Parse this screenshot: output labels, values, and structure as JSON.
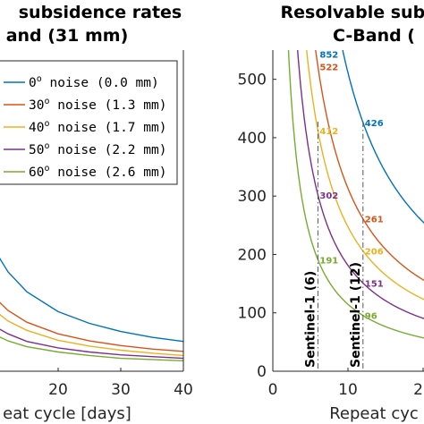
{
  "chart_data": [
    {
      "type": "line",
      "title": "subsidence rates",
      "subtitle": "and (31 mm)",
      "xlabel": "eat cycle [days]",
      "ylabel": "",
      "xlim": [
        10,
        40
      ],
      "xticks": [
        "20",
        "30",
        "40"
      ],
      "legend": {
        "placement": "top-right",
        "entries": [
          "0° noise (0.0 mm)",
          "30° noise (1.3 mm)",
          "40° noise (1.7 mm)",
          "50° noise (2.2 mm)",
          "60° noise (2.6 mm)"
        ],
        "entry_base": [
          "0",
          "30",
          "40",
          "50",
          "60"
        ],
        "entry_sup": [
          "o",
          "o",
          "o",
          "o",
          "o"
        ],
        "entry_rest": [
          " noise (0.0 mm)",
          " noise (1.3 mm)",
          " noise (1.7 mm)",
          " noise (2.2 mm)",
          " noise (2.6 mm)"
        ]
      },
      "series": [
        {
          "color": "#0072BD",
          "x": [
            10,
            12,
            15,
            20,
            25,
            30,
            35,
            40
          ],
          "y": [
            205,
            170,
            136,
            102,
            82,
            68,
            58,
            51
          ]
        },
        {
          "color": "#D95319",
          "x": [
            10,
            12,
            15,
            20,
            25,
            30,
            35,
            40
          ],
          "y": [
            125,
            104,
            84,
            64,
            52,
            44,
            38,
            34
          ]
        },
        {
          "color": "#EDB120",
          "x": [
            10,
            12,
            15,
            20,
            25,
            30,
            35,
            40
          ],
          "y": [
            103,
            86,
            70,
            53,
            43,
            36,
            31,
            27
          ]
        },
        {
          "color": "#7E2F8E",
          "x": [
            10,
            12,
            15,
            20,
            25,
            30,
            35,
            40
          ],
          "y": [
            76,
            64,
            51,
            40,
            33,
            28,
            25,
            22
          ]
        },
        {
          "color": "#77AC30",
          "x": [
            10,
            12,
            15,
            20,
            25,
            30,
            35,
            40
          ],
          "y": [
            62,
            52,
            42,
            33,
            27,
            22,
            20,
            18
          ]
        }
      ]
    },
    {
      "type": "line",
      "title": "Resolvable subs",
      "subtitle": "C-Band (",
      "xlabel": "Repeat cyc",
      "ylabel": "",
      "xlim": [
        0,
        30
      ],
      "ylim": [
        0,
        550
      ],
      "xticks": [
        "0",
        "10",
        "20"
      ],
      "yticks": [
        "0",
        "100",
        "200",
        "300",
        "400",
        "500"
      ],
      "series": [
        {
          "color": "#0072BD",
          "k": 5112,
          "label_value": "852",
          "label_x": 6,
          "label_value2": "426",
          "label_x2": 12
        },
        {
          "color": "#D95319",
          "k": 3132,
          "label_value": "522",
          "label_x": 6,
          "label_value2": "261",
          "label_x2": 12
        },
        {
          "color": "#EDB120",
          "k": 2472,
          "label_value": "412",
          "label_x": 6,
          "label_value2": "206",
          "label_x2": 12
        },
        {
          "color": "#7E2F8E",
          "k": 1812,
          "label_value": "302",
          "label_x": 6,
          "label_value2": "151",
          "label_x2": 12
        },
        {
          "color": "#77AC30",
          "k": 1146,
          "label_value": "191",
          "label_x": 6,
          "label_value2": "96",
          "label_x2": 12
        }
      ],
      "vlines": [
        {
          "x": 6,
          "label": "Sentinel-1 (6)"
        },
        {
          "x": 12,
          "label": "Sentinel-1 (12)"
        }
      ]
    }
  ]
}
